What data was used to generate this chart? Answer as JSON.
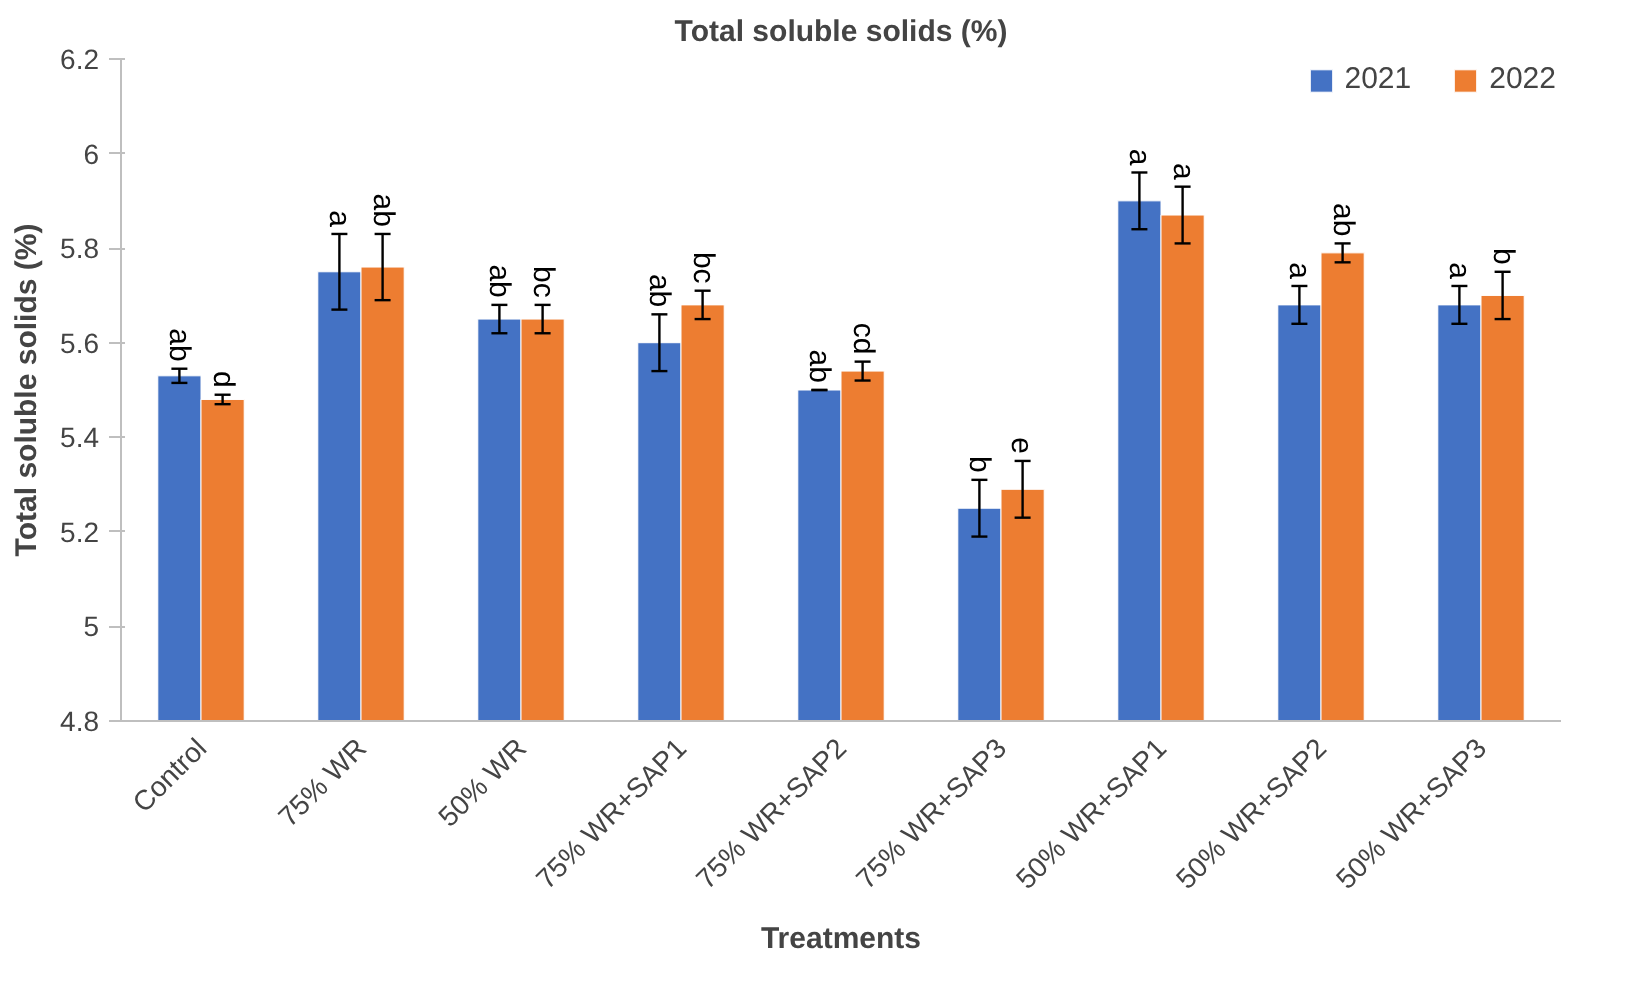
{
  "chart_data": {
    "type": "bar",
    "title": "Total soluble solids (%)",
    "xlabel": "Treatments",
    "ylabel": "Total soluble solids (%)",
    "categories": [
      "Control",
      "75% WR",
      "50% WR",
      "75% WR+SAP1",
      "75% WR+SAP2",
      "75% WR+SAP3",
      "50% WR+SAP1",
      "50% WR+SAP2",
      "50% WR+SAP3"
    ],
    "series": [
      {
        "name": "2021",
        "color": "#4472c4",
        "values": [
          5.53,
          5.75,
          5.65,
          5.6,
          5.5,
          5.25,
          5.9,
          5.68,
          5.68
        ],
        "errors": [
          0.015,
          0.08,
          0.03,
          0.06,
          0.0,
          0.06,
          0.06,
          0.04,
          0.04
        ],
        "value_labels": [
          "ab",
          "a",
          "ab",
          "ab",
          "ab",
          "b",
          "a",
          "a",
          "a"
        ]
      },
      {
        "name": "2022",
        "color": "#ed7d31",
        "values": [
          5.48,
          5.76,
          5.65,
          5.68,
          5.54,
          5.29,
          5.87,
          5.79,
          5.7
        ],
        "errors": [
          0.01,
          0.07,
          0.03,
          0.03,
          0.02,
          0.06,
          0.06,
          0.02,
          0.05
        ],
        "value_labels": [
          "d",
          "ab",
          "bc",
          "bc",
          "cd",
          "e",
          "a",
          "ab",
          "b"
        ]
      }
    ],
    "ylim": [
      4.8,
      6.2
    ],
    "yticks": [
      4.8,
      5,
      5.2,
      5.4,
      5.6,
      5.8,
      6,
      6.2
    ],
    "grid": false,
    "legend": "top right"
  }
}
